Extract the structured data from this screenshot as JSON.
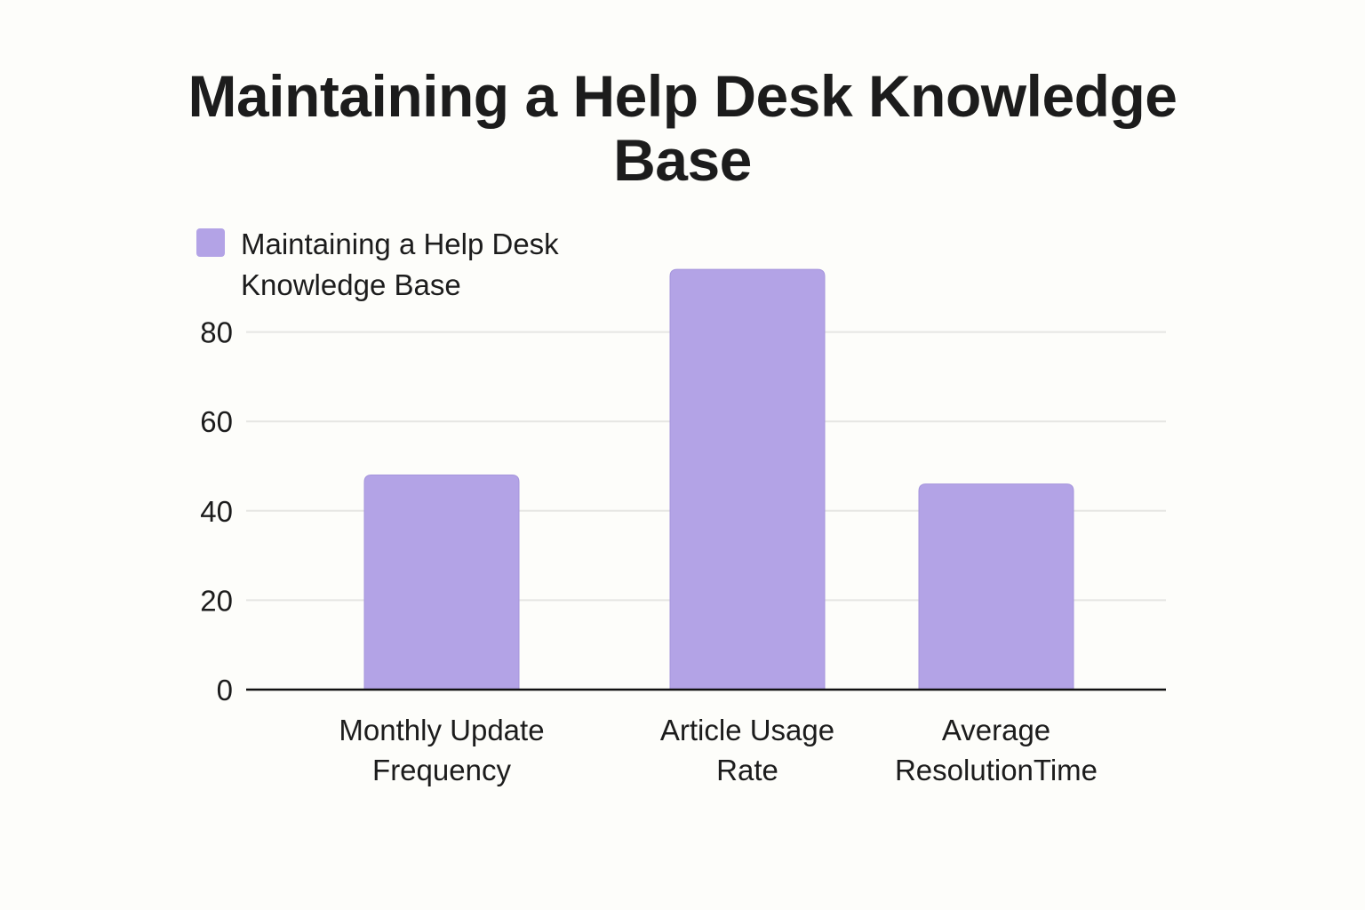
{
  "chart_data": {
    "type": "bar",
    "title": "Maintaining a Help Desk Knowledge Base",
    "xlabel": "",
    "ylabel": "",
    "categories": [
      [
        "Monthly Update",
        "Frequency"
      ],
      [
        "Article Usage",
        "Rate"
      ],
      [
        "Average",
        "ResolutionTime"
      ]
    ],
    "series": [
      {
        "name": "Maintaining a Help Desk Knowledge Base",
        "values": [
          48,
          94,
          46
        ],
        "color": "#b3a3e6"
      }
    ],
    "ylim": [
      0,
      94
    ],
    "yticks": [
      0,
      20,
      40,
      60,
      80
    ],
    "grid": true,
    "legend_position": "top-left"
  }
}
